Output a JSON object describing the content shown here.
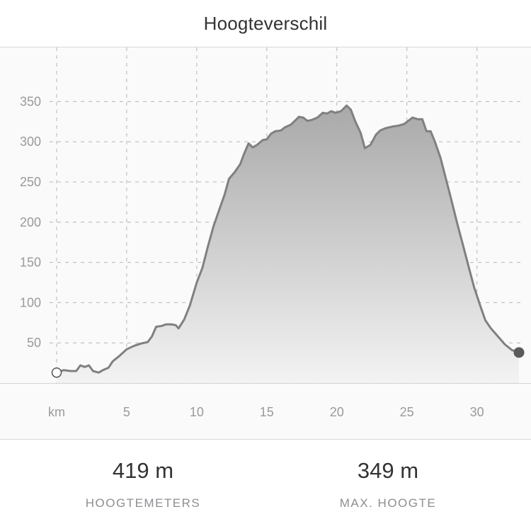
{
  "header": {
    "title": "Hoogteverschil"
  },
  "chart_data": {
    "type": "area",
    "title": "Hoogteverschil",
    "xlabel": "km",
    "ylabel": "",
    "x_unit_label": "km",
    "xlim": [
      0,
      33
    ],
    "ylim": [
      0,
      370
    ],
    "x_ticks": [
      5,
      10,
      15,
      20,
      25,
      30
    ],
    "y_ticks": [
      50,
      100,
      150,
      200,
      250,
      300,
      350
    ],
    "grid": true,
    "series": [
      {
        "points": [
          [
            0,
            13
          ],
          [
            0.5,
            16
          ],
          [
            1,
            15
          ],
          [
            1.4,
            15
          ],
          [
            1.7,
            22
          ],
          [
            2,
            20
          ],
          [
            2.3,
            22
          ],
          [
            2.6,
            15
          ],
          [
            3,
            13
          ],
          [
            3.3,
            16
          ],
          [
            3.7,
            19
          ],
          [
            4,
            27
          ],
          [
            4.5,
            34
          ],
          [
            5,
            42
          ],
          [
            5.5,
            46
          ],
          [
            6,
            49
          ],
          [
            6.5,
            51
          ],
          [
            6.8,
            58
          ],
          [
            7.1,
            70
          ],
          [
            7.5,
            71
          ],
          [
            7.8,
            73
          ],
          [
            8.2,
            73
          ],
          [
            8.5,
            72
          ],
          [
            8.7,
            68
          ],
          [
            9.1,
            79
          ],
          [
            9.5,
            96
          ],
          [
            10,
            125
          ],
          [
            10.4,
            143
          ],
          [
            10.8,
            170
          ],
          [
            11.2,
            195
          ],
          [
            11.6,
            215
          ],
          [
            12,
            235
          ],
          [
            12.3,
            254
          ],
          [
            12.7,
            262
          ],
          [
            13.1,
            272
          ],
          [
            13.4,
            286
          ],
          [
            13.7,
            298
          ],
          [
            14,
            293
          ],
          [
            14.3,
            296
          ],
          [
            14.7,
            302
          ],
          [
            15,
            303
          ],
          [
            15.3,
            310
          ],
          [
            15.6,
            313
          ],
          [
            16,
            314
          ],
          [
            16.3,
            318
          ],
          [
            16.7,
            321
          ],
          [
            17,
            326
          ],
          [
            17.3,
            331
          ],
          [
            17.6,
            330
          ],
          [
            17.9,
            326
          ],
          [
            18.2,
            327
          ],
          [
            18.6,
            330
          ],
          [
            19,
            336
          ],
          [
            19.3,
            335
          ],
          [
            19.6,
            338
          ],
          [
            19.9,
            336
          ],
          [
            20.3,
            338
          ],
          [
            20.7,
            345
          ],
          [
            21,
            340
          ],
          [
            21.3,
            326
          ],
          [
            21.7,
            311
          ],
          [
            22,
            292
          ],
          [
            22.4,
            296
          ],
          [
            22.8,
            309
          ],
          [
            23.1,
            314
          ],
          [
            23.5,
            317
          ],
          [
            24,
            319
          ],
          [
            24.4,
            320
          ],
          [
            24.8,
            322
          ],
          [
            25.1,
            326
          ],
          [
            25.4,
            330
          ],
          [
            25.8,
            328
          ],
          [
            26.1,
            328
          ],
          [
            26.4,
            313
          ],
          [
            26.7,
            313
          ],
          [
            27,
            300
          ],
          [
            27.4,
            280
          ],
          [
            27.8,
            253
          ],
          [
            28.2,
            226
          ],
          [
            28.6,
            198
          ],
          [
            29,
            172
          ],
          [
            29.4,
            145
          ],
          [
            29.8,
            119
          ],
          [
            30.2,
            98
          ],
          [
            30.6,
            78
          ],
          [
            31,
            68
          ],
          [
            31.5,
            58
          ],
          [
            32,
            48
          ],
          [
            32.5,
            41
          ],
          [
            33,
            38
          ]
        ]
      }
    ]
  },
  "stats": [
    {
      "value": "419 m",
      "label": "HOOGTEMETERS"
    },
    {
      "value": "349 m",
      "label": "MAX. HOOGTE"
    }
  ],
  "colors": {
    "line": "#808080",
    "fill_top": "#a9a9a9",
    "fill_bottom": "#f3f3f3",
    "grid": "#b5b5b5",
    "tick_text": "#9a9a9a",
    "end_marker": "#5a5a5a"
  }
}
